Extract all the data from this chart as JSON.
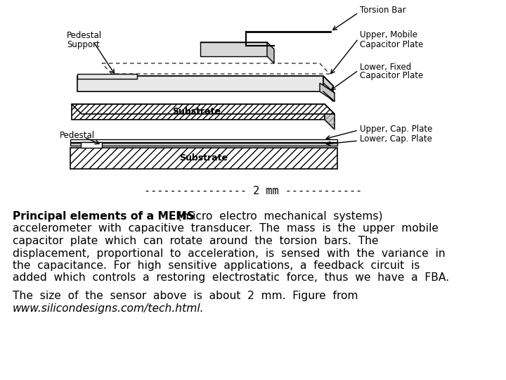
{
  "bg_color": "#ffffff",
  "text_color": "#000000",
  "scale_bar": "---------------- 2 mm ------------",
  "bold_intro": "Principal elements of a MEMS",
  "para1_lines": [
    " (micro  electro  mechanical  systems)",
    "accelerometer  with  capacitive  transducer.  The  mass  is  the  upper  mobile",
    "capacitor  plate  which  can  rotate  around  the  torsion  bars.  The",
    "displacement,  proportional  to  acceleration,  is  sensed  with  the  variance  in",
    "the  capacitance.  For  high  sensitive  applications,  a  feedback  circuit  is",
    "added  which  controls  a  restoring  electrostatic  force,  thus  we  have  a  FBA."
  ],
  "para2_line1": "The  size  of  the  sensor  above  is  about  2  mm.  Figure  from",
  "para2_line2_italic": "www.silicondesigns.com/tech.html.",
  "font_size": 11.2,
  "label_font_size": 8.5
}
